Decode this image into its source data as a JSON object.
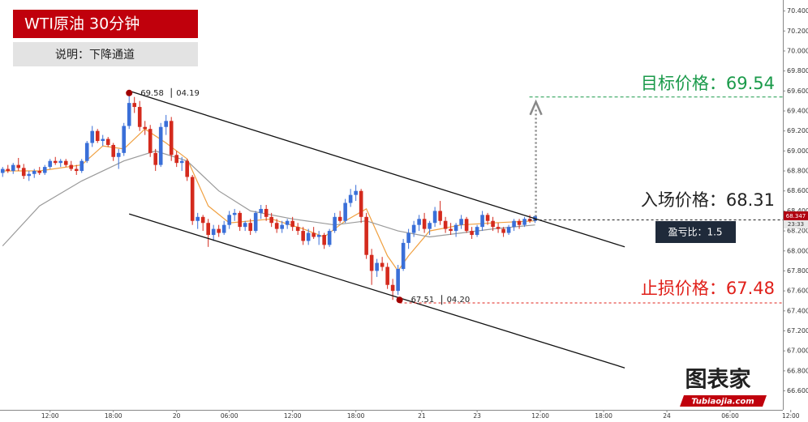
{
  "chart_data": {
    "type": "candlestick",
    "title": "WTI原油 30分钟",
    "subtitle": "说明：下降通道",
    "up_color": "#3a6fd8",
    "down_color": "#d42a1d",
    "ylim": [
      66.41,
      70.51
    ],
    "xlim": [
      2.5,
      153
    ],
    "yticks": [
      {
        "value": 70.4,
        "label": "70.400"
      },
      {
        "value": 70.2,
        "label": "70.200"
      },
      {
        "value": 70.0,
        "label": "70.000"
      },
      {
        "value": 69.8,
        "label": "69.800"
      },
      {
        "value": 69.6,
        "label": "69.600"
      },
      {
        "value": 69.4,
        "label": "69.400"
      },
      {
        "value": 69.2,
        "label": "69.200"
      },
      {
        "value": 69.0,
        "label": "69.000"
      },
      {
        "value": 68.8,
        "label": "68.800"
      },
      {
        "value": 68.6,
        "label": "68.600"
      },
      {
        "value": 68.4,
        "label": "68.400"
      },
      {
        "value": 68.2,
        "label": "68.200"
      },
      {
        "value": 68.0,
        "label": "68.000"
      },
      {
        "value": 67.8,
        "label": "67.800"
      },
      {
        "value": 67.6,
        "label": "67.600"
      },
      {
        "value": 67.4,
        "label": "67.400"
      },
      {
        "value": 67.2,
        "label": "67.200"
      },
      {
        "value": 67.0,
        "label": "67.000"
      },
      {
        "value": 66.8,
        "label": "66.800"
      },
      {
        "value": 66.6,
        "label": "66.600"
      }
    ],
    "xticks": [
      {
        "value": 12,
        "label": "12:00"
      },
      {
        "value": 24,
        "label": "18:00"
      },
      {
        "value": 36,
        "label": "20"
      },
      {
        "value": 46,
        "label": "06:00"
      },
      {
        "value": 58,
        "label": "12:00"
      },
      {
        "value": 70,
        "label": "18:00"
      },
      {
        "value": 82.5,
        "label": "21"
      },
      {
        "value": 93,
        "label": "23"
      },
      {
        "value": 105,
        "label": "12:00"
      },
      {
        "value": 117,
        "label": "18:00"
      },
      {
        "value": 129,
        "label": "24"
      },
      {
        "value": 141,
        "label": "06:00"
      },
      {
        "value": 152.5,
        "label": "12:00"
      }
    ],
    "x": [
      3,
      4,
      5,
      6,
      7,
      8,
      9,
      10,
      11,
      12,
      13,
      14,
      15,
      16,
      17,
      18,
      19,
      20,
      21,
      22,
      23,
      24,
      25,
      26,
      27,
      28,
      29,
      30,
      31,
      32,
      33,
      34,
      35,
      36,
      37,
      38,
      39,
      40,
      41,
      42,
      43,
      44,
      45,
      46,
      47,
      48,
      49,
      50,
      51,
      52,
      53,
      54,
      55,
      56,
      57,
      58,
      59,
      60,
      61,
      62,
      63,
      64,
      65,
      66,
      67,
      68,
      69,
      70,
      71,
      72,
      73,
      74,
      75,
      76,
      77,
      78,
      79,
      80,
      81,
      82,
      83,
      84,
      85,
      86,
      87,
      88,
      89,
      90,
      91,
      92,
      93,
      94,
      95,
      96,
      97,
      98,
      99,
      100,
      101,
      102,
      103,
      104
    ],
    "ohlc": [
      [
        68.78,
        68.84,
        68.74,
        68.82
      ],
      [
        68.82,
        68.86,
        68.78,
        68.8
      ],
      [
        68.8,
        68.88,
        68.77,
        68.86
      ],
      [
        68.86,
        68.93,
        68.8,
        68.83
      ],
      [
        68.83,
        68.87,
        68.72,
        68.75
      ],
      [
        68.75,
        68.8,
        68.7,
        68.77
      ],
      [
        68.77,
        68.82,
        68.73,
        68.8
      ],
      [
        68.8,
        68.84,
        68.76,
        68.78
      ],
      [
        68.78,
        68.86,
        68.76,
        68.84
      ],
      [
        68.84,
        68.92,
        68.82,
        68.9
      ],
      [
        68.9,
        68.94,
        68.86,
        68.88
      ],
      [
        68.88,
        68.92,
        68.84,
        68.9
      ],
      [
        68.9,
        68.92,
        68.84,
        68.86
      ],
      [
        68.86,
        68.9,
        68.8,
        68.82
      ],
      [
        68.82,
        68.86,
        68.76,
        68.8
      ],
      [
        68.8,
        68.92,
        68.78,
        68.9
      ],
      [
        68.9,
        69.1,
        68.88,
        69.08
      ],
      [
        69.08,
        69.25,
        69.04,
        69.2
      ],
      [
        69.2,
        69.22,
        69.08,
        69.1
      ],
      [
        69.1,
        69.16,
        69.05,
        69.12
      ],
      [
        69.12,
        69.14,
        69.04,
        69.06
      ],
      [
        69.06,
        69.08,
        68.9,
        68.94
      ],
      [
        68.94,
        69.02,
        68.82,
        68.98
      ],
      [
        68.98,
        69.28,
        68.95,
        69.25
      ],
      [
        69.25,
        69.58,
        69.22,
        69.48
      ],
      [
        69.48,
        69.54,
        69.38,
        69.44
      ],
      [
        69.44,
        69.5,
        69.2,
        69.24
      ],
      [
        69.24,
        69.3,
        69.16,
        69.22
      ],
      [
        69.22,
        69.26,
        68.94,
        68.98
      ],
      [
        68.98,
        69.02,
        68.8,
        68.86
      ],
      [
        68.86,
        69.28,
        68.84,
        69.24
      ],
      [
        69.24,
        69.36,
        69.16,
        69.3
      ],
      [
        69.3,
        69.34,
        68.9,
        68.96
      ],
      [
        68.96,
        69.0,
        68.84,
        68.88
      ],
      [
        68.88,
        68.94,
        68.8,
        68.9
      ],
      [
        68.9,
        68.92,
        68.7,
        68.74
      ],
      [
        68.74,
        68.76,
        68.26,
        68.3
      ],
      [
        68.3,
        68.38,
        68.22,
        68.34
      ],
      [
        68.34,
        68.36,
        68.2,
        68.28
      ],
      [
        68.28,
        68.32,
        68.04,
        68.16
      ],
      [
        68.16,
        68.26,
        68.1,
        68.22
      ],
      [
        68.22,
        68.26,
        68.14,
        68.18
      ],
      [
        68.18,
        68.3,
        68.16,
        68.26
      ],
      [
        68.26,
        68.4,
        68.22,
        68.36
      ],
      [
        68.36,
        68.42,
        68.3,
        68.38
      ],
      [
        68.38,
        68.4,
        68.2,
        68.24
      ],
      [
        68.24,
        68.3,
        68.2,
        68.28
      ],
      [
        68.28,
        68.32,
        68.16,
        68.2
      ],
      [
        68.2,
        68.4,
        68.18,
        68.38
      ],
      [
        68.38,
        68.46,
        68.32,
        68.42
      ],
      [
        68.42,
        68.46,
        68.3,
        68.34
      ],
      [
        68.34,
        68.38,
        68.24,
        68.28
      ],
      [
        68.28,
        68.32,
        68.18,
        68.22
      ],
      [
        68.22,
        68.3,
        68.18,
        68.26
      ],
      [
        68.26,
        68.32,
        68.22,
        68.3
      ],
      [
        68.3,
        68.34,
        68.2,
        68.24
      ],
      [
        68.24,
        68.28,
        68.16,
        68.2
      ],
      [
        68.2,
        68.24,
        68.06,
        68.1
      ],
      [
        68.1,
        68.22,
        68.06,
        68.18
      ],
      [
        68.18,
        68.24,
        68.12,
        68.14
      ],
      [
        68.14,
        68.2,
        68.06,
        68.16
      ],
      [
        68.16,
        68.18,
        68.02,
        68.06
      ],
      [
        68.06,
        68.22,
        68.04,
        68.2
      ],
      [
        68.2,
        68.38,
        68.18,
        68.34
      ],
      [
        68.34,
        68.4,
        68.28,
        68.3
      ],
      [
        68.3,
        68.52,
        68.28,
        68.48
      ],
      [
        68.48,
        68.62,
        68.44,
        68.56
      ],
      [
        68.56,
        68.66,
        68.5,
        68.6
      ],
      [
        68.6,
        68.62,
        68.28,
        68.34
      ],
      [
        68.34,
        68.38,
        67.92,
        67.96
      ],
      [
        67.96,
        68.02,
        67.66,
        67.8
      ],
      [
        67.8,
        67.92,
        67.74,
        67.88
      ],
      [
        67.88,
        67.94,
        67.8,
        67.84
      ],
      [
        67.84,
        67.88,
        67.62,
        67.66
      ],
      [
        67.66,
        67.72,
        67.51,
        67.6
      ],
      [
        67.6,
        67.86,
        67.56,
        67.82
      ],
      [
        67.82,
        68.12,
        67.8,
        68.08
      ],
      [
        68.08,
        68.22,
        68.02,
        68.18
      ],
      [
        68.18,
        68.3,
        68.14,
        68.26
      ],
      [
        68.26,
        68.36,
        68.2,
        68.32
      ],
      [
        68.32,
        68.38,
        68.18,
        68.22
      ],
      [
        68.22,
        68.3,
        68.16,
        68.28
      ],
      [
        68.28,
        68.44,
        68.24,
        68.4
      ],
      [
        68.4,
        68.5,
        68.26,
        68.3
      ],
      [
        68.3,
        68.34,
        68.18,
        68.22
      ],
      [
        68.22,
        68.28,
        68.16,
        68.2
      ],
      [
        68.2,
        68.28,
        68.14,
        68.26
      ],
      [
        68.26,
        68.36,
        68.22,
        68.32
      ],
      [
        68.32,
        68.34,
        68.18,
        68.2
      ],
      [
        68.2,
        68.24,
        68.12,
        68.16
      ],
      [
        68.16,
        68.26,
        68.14,
        68.24
      ],
      [
        68.24,
        68.4,
        68.2,
        68.36
      ],
      [
        68.36,
        68.38,
        68.26,
        68.3
      ],
      [
        68.3,
        68.34,
        68.2,
        68.24
      ],
      [
        68.24,
        68.28,
        68.18,
        68.22
      ],
      [
        68.22,
        68.24,
        68.14,
        68.18
      ],
      [
        68.18,
        68.26,
        68.16,
        68.24
      ],
      [
        68.24,
        68.32,
        68.2,
        68.3
      ],
      [
        68.3,
        68.32,
        68.22,
        68.26
      ],
      [
        68.26,
        68.34,
        68.24,
        68.32
      ],
      [
        68.32,
        68.36,
        68.28,
        68.3
      ],
      [
        68.3,
        68.36,
        68.28,
        68.347
      ]
    ],
    "series": [
      {
        "color": "#f0a040",
        "x": [
          3,
          10,
          18,
          22,
          26,
          30,
          34,
          38,
          42,
          46,
          54,
          60,
          64,
          68,
          72,
          76,
          78,
          80,
          84,
          90,
          96,
          104
        ],
        "values": [
          68.8,
          68.8,
          68.86,
          69.05,
          69.02,
          69.22,
          69.08,
          68.92,
          68.45,
          68.28,
          68.32,
          68.22,
          68.14,
          68.3,
          68.42,
          67.95,
          67.8,
          67.95,
          68.2,
          68.26,
          68.28,
          68.3
        ]
      },
      {
        "color": "#9a9a9a",
        "x": [
          3,
          10,
          18,
          26,
          32,
          38,
          44,
          50,
          58,
          66,
          72,
          78,
          84,
          90,
          96,
          104
        ],
        "values": [
          68.05,
          68.45,
          68.7,
          68.9,
          69.0,
          68.9,
          68.6,
          68.4,
          68.32,
          68.26,
          68.3,
          68.2,
          68.14,
          68.18,
          68.22,
          68.26
        ]
      }
    ],
    "channel_lines": [
      {
        "x": [
          27,
          121
        ],
        "values": [
          69.6,
          68.04
        ]
      },
      {
        "x": [
          27,
          121
        ],
        "values": [
          68.37,
          66.83
        ]
      }
    ],
    "high_point": {
      "x": 27,
      "value": 69.58,
      "date": "04.19"
    },
    "low_point": {
      "x": 78.3,
      "value": 67.51,
      "date": "04.20"
    },
    "target": {
      "label": "目标价格：69.54",
      "value": 69.54,
      "color": "#1a9a4a"
    },
    "entry": {
      "label": "入场价格：68.31",
      "value": 68.31,
      "color": "#222222"
    },
    "stop": {
      "label": "止损价格：67.48",
      "value": 67.48,
      "color": "#e0201a"
    },
    "ratio": "盈亏比：1.5",
    "last_price": {
      "value": 68.347,
      "time": "23:33"
    },
    "logo": {
      "name": "图表家",
      "site": "Tubiaojia.com"
    }
  }
}
